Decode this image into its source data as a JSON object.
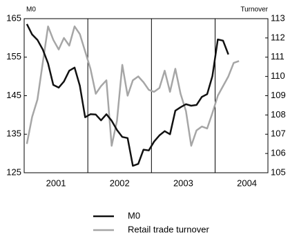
{
  "chart_data": {
    "type": "line",
    "y_label": "M0",
    "y2_label": "Turnover",
    "xlim": [
      2001,
      2004.83
    ],
    "xticks": [
      {
        "value": 2001.5,
        "label": "2001"
      },
      {
        "value": 2002.5,
        "label": "2002"
      },
      {
        "value": 2003.5,
        "label": "2003"
      },
      {
        "value": 2004.5,
        "label": "2004"
      }
    ],
    "vlines": [
      2002,
      2003,
      2004
    ],
    "ylim": [
      125,
      165
    ],
    "yticks": [
      125,
      135,
      145,
      155,
      165
    ],
    "y2lim": [
      105,
      113
    ],
    "y2ticks": [
      105,
      106,
      107,
      108,
      109,
      110,
      111,
      112,
      113
    ],
    "series": [
      {
        "name": "M0",
        "color": "#111111",
        "axis": "y",
        "x": [
          2001.042,
          2001.125,
          2001.208,
          2001.292,
          2001.375,
          2001.458,
          2001.542,
          2001.625,
          2001.708,
          2001.792,
          2001.875,
          2001.958,
          2002.042,
          2002.125,
          2002.208,
          2002.292,
          2002.375,
          2002.458,
          2002.542,
          2002.625,
          2002.708,
          2002.792,
          2002.875,
          2002.958,
          2003.042,
          2003.125,
          2003.208,
          2003.292,
          2003.375,
          2003.458,
          2003.542,
          2003.625,
          2003.708,
          2003.792,
          2003.875,
          2003.958,
          2004.042,
          2004.125,
          2004.208
        ],
        "values": [
          163.6,
          160.9,
          159.5,
          157,
          153.4,
          147.8,
          147.1,
          148.7,
          151.5,
          152.3,
          147.6,
          139.4,
          140.2,
          140.1,
          138.6,
          140.2,
          138.5,
          136.1,
          134.3,
          134,
          126.8,
          127.3,
          131,
          130.8,
          133.1,
          134.7,
          135.8,
          135,
          141.1,
          142,
          142.8,
          142.4,
          142.6,
          144.7,
          145.4,
          150.1,
          159.6,
          159.3,
          155.7
        ]
      },
      {
        "name": "Retail trade turnover",
        "color": "#a6a6a6",
        "axis": "y2",
        "x": [
          2001.042,
          2001.125,
          2001.208,
          2001.292,
          2001.375,
          2001.458,
          2001.542,
          2001.625,
          2001.708,
          2001.792,
          2001.875,
          2001.958,
          2002.042,
          2002.125,
          2002.208,
          2002.292,
          2002.375,
          2002.458,
          2002.542,
          2002.625,
          2002.708,
          2002.792,
          2002.875,
          2002.958,
          2003.042,
          2003.125,
          2003.208,
          2003.292,
          2003.375,
          2003.458,
          2003.542,
          2003.625,
          2003.708,
          2003.792,
          2003.875,
          2003.958,
          2004.042,
          2004.125,
          2004.208,
          2004.292,
          2004.375
        ],
        "values": [
          106.5,
          107.9,
          108.8,
          110.7,
          112.6,
          111.9,
          111.4,
          112,
          111.6,
          112.6,
          112.2,
          111.3,
          110.4,
          109.1,
          109.5,
          109.8,
          106.4,
          107.7,
          110.6,
          109,
          109.8,
          110,
          109.7,
          109.3,
          109.2,
          109.4,
          110.3,
          109.2,
          110.4,
          109.1,
          108.2,
          106.4,
          107.2,
          107.4,
          107.3,
          108.1,
          109,
          109.5,
          110,
          110.7,
          110.8
        ]
      }
    ]
  }
}
